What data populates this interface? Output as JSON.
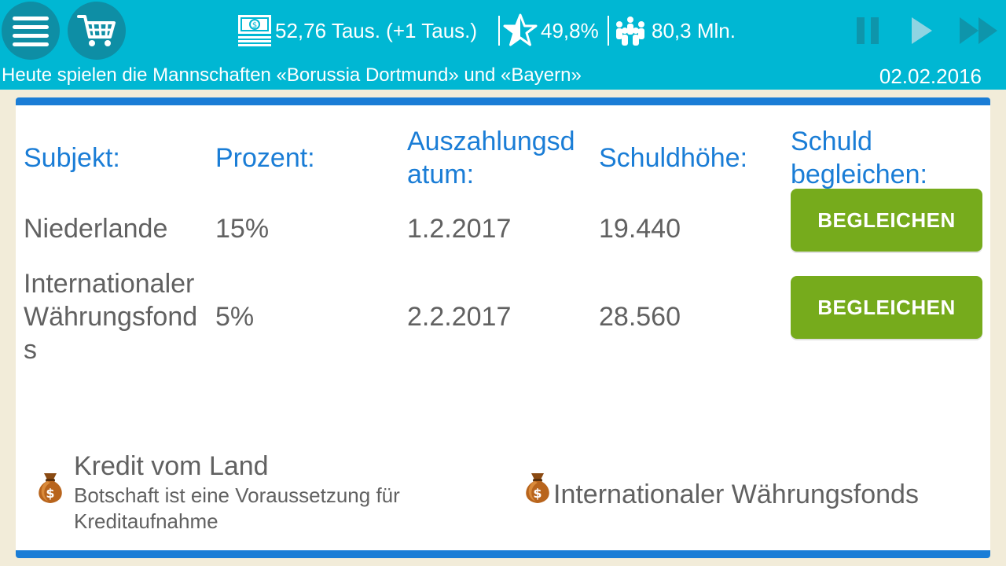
{
  "header": {
    "money": "52,76 Taus. (+1 Taus.)",
    "rating": "49,8%",
    "population": "80,3 Mln.",
    "ticker": "Heute spielen die Mannschaften «Borussia Dortmund» und «Bayern»",
    "date": "02.02.2016",
    "icons": [
      "menu-icon",
      "cart-icon",
      "money-icon",
      "star-icon",
      "people-icon",
      "pause-icon",
      "play-icon",
      "fast-forward-icon"
    ]
  },
  "table": {
    "headers": {
      "subject": "Subjekt:",
      "percent": "Prozent:",
      "date_line1": "Auszahlungsd",
      "date_line2": "atum:",
      "amount": "Schuldhöhe:",
      "pay_line1": "Schuld",
      "pay_line2": "begleichen:"
    },
    "rows": [
      {
        "subject_lines": [
          "Niederlande"
        ],
        "percent": "15%",
        "date": "1.2.2017",
        "amount": "19.440",
        "button": "BEGLEICHEN"
      },
      {
        "subject_lines": [
          "Internationaler",
          "Währungsfond",
          "s"
        ],
        "percent": "5%",
        "date": "2.2.2017",
        "amount": "28.560",
        "button": "BEGLEICHEN"
      }
    ]
  },
  "options": {
    "country_loan_title": "Kredit vom Land",
    "country_loan_subtitle": "Botschaft ist eine Voraussetzung für Kreditaufnahme",
    "imf_title": "Internationaler Währungsfonds"
  },
  "colors": {
    "topbar": "#00b7d3",
    "accent_blue": "#1a7dd6",
    "button_green": "#76ab1c",
    "background": "#f2ecd9"
  }
}
